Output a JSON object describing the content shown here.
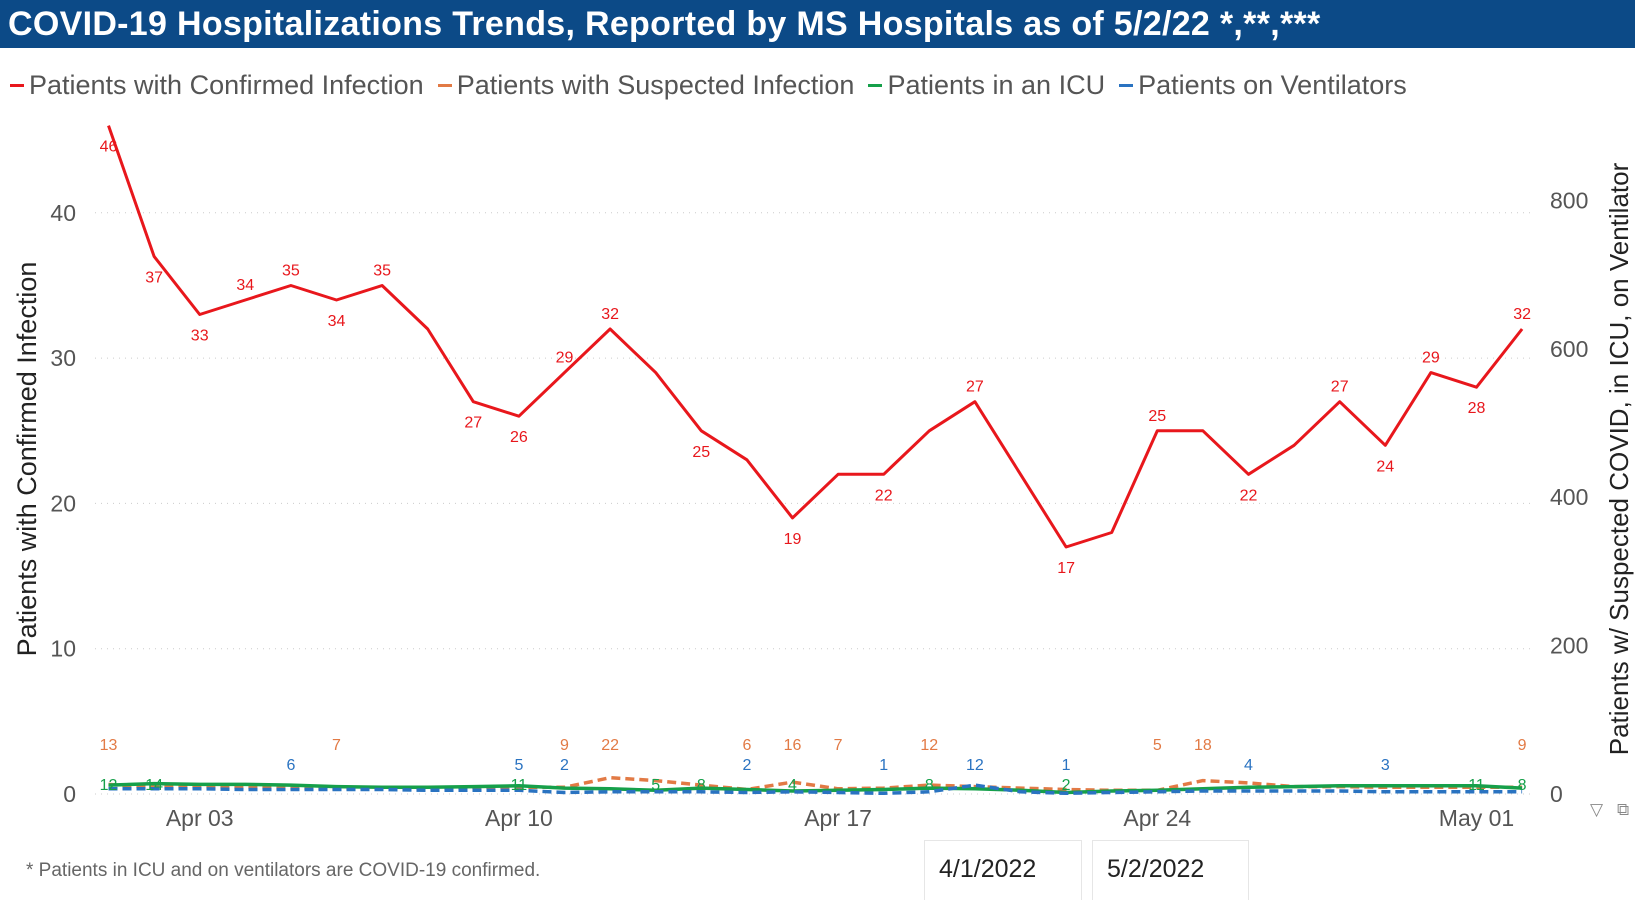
{
  "header": {
    "title": "COVID-19 Hospitalizations Trends, Reported by MS Hospitals as of 5/2/22 *,**,***"
  },
  "legend": [
    {
      "label": "Patients with Confirmed Infection",
      "color": "#e8171c"
    },
    {
      "label": "Patients with Suspected Infection",
      "color": "#e27a45"
    },
    {
      "label": "Patients in an ICU",
      "color": "#16a04a"
    },
    {
      "label": "Patients on Ventilators",
      "color": "#2a73c1"
    }
  ],
  "footnote": "* Patients in ICU and on ventilators are COVID-19 confirmed.",
  "slicer": {
    "start": "4/1/2022",
    "end": "5/2/2022"
  },
  "icons": {
    "filter": "filter-icon",
    "focus": "focus-mode-icon"
  },
  "chart_data": {
    "type": "line",
    "x_start": "2022-04-01",
    "x": [
      "Apr 01",
      "Apr 02",
      "Apr 03",
      "Apr 04",
      "Apr 05",
      "Apr 06",
      "Apr 07",
      "Apr 08",
      "Apr 09",
      "Apr 10",
      "Apr 11",
      "Apr 12",
      "Apr 13",
      "Apr 14",
      "Apr 15",
      "Apr 16",
      "Apr 17",
      "Apr 18",
      "Apr 19",
      "Apr 20",
      "Apr 21",
      "Apr 22",
      "Apr 23",
      "Apr 24",
      "Apr 25",
      "Apr 26",
      "Apr 27",
      "Apr 28",
      "Apr 29",
      "Apr 30",
      "May 01",
      "May 02"
    ],
    "x_ticks": [
      "Apr 03",
      "Apr 10",
      "Apr 17",
      "Apr 24",
      "May 01"
    ],
    "y_left": {
      "label": "Patients with Confirmed Infection",
      "ticks": [
        0,
        10,
        20,
        30,
        40
      ],
      "range": [
        0,
        46
      ]
    },
    "y_right": {
      "label": "Patients w/ Suspected COVID, in ICU, on Ventilator",
      "ticks": [
        0,
        200,
        400,
        600,
        800
      ],
      "range": [
        0,
        900
      ]
    },
    "grid": true,
    "legend_position": "top-left",
    "series": [
      {
        "name": "Patients with Confirmed Infection",
        "axis": "left",
        "color": "#e8171c",
        "dash": false,
        "values": [
          46,
          37,
          33,
          34,
          35,
          34,
          35,
          32,
          27,
          26,
          29,
          32,
          29,
          25,
          23,
          19,
          22,
          22,
          25,
          27,
          22,
          17,
          18,
          25,
          25,
          22,
          24,
          27,
          24,
          29,
          28,
          32
        ],
        "labeled": [
          0,
          1,
          2,
          3,
          4,
          5,
          6,
          8,
          9,
          10,
          11,
          13,
          15,
          17,
          19,
          21,
          23,
          25,
          27,
          28,
          29,
          30,
          31
        ]
      },
      {
        "name": "Patients with Suspected Infection",
        "axis": "right",
        "color": "#e27a45",
        "dash": true,
        "values": [
          13,
          9,
          10,
          9,
          8,
          7,
          9,
          8,
          9,
          9,
          9,
          22,
          18,
          12,
          6,
          16,
          7,
          8,
          12,
          10,
          8,
          6,
          5,
          5,
          18,
          15,
          10,
          10,
          9,
          9,
          9,
          9
        ],
        "labeled": [
          0,
          5,
          10,
          11,
          14,
          15,
          16,
          18,
          23,
          24,
          31
        ]
      },
      {
        "name": "Patients in an ICU",
        "axis": "right",
        "color": "#16a04a",
        "dash": false,
        "values": [
          12,
          14,
          13,
          13,
          12,
          10,
          9,
          9,
          10,
          11,
          8,
          7,
          5,
          8,
          6,
          4,
          5,
          6,
          8,
          7,
          5,
          2,
          4,
          5,
          7,
          9,
          10,
          11,
          11,
          11,
          11,
          8
        ],
        "labeled": [
          0,
          1,
          9,
          12,
          13,
          15,
          18,
          21,
          30,
          31
        ]
      },
      {
        "name": "Patients on Ventilators",
        "axis": "right",
        "color": "#2a73c1",
        "dash": true,
        "values": [
          7,
          7,
          7,
          6,
          6,
          6,
          6,
          5,
          5,
          5,
          2,
          3,
          3,
          3,
          2,
          3,
          2,
          1,
          3,
          12,
          3,
          1,
          2,
          3,
          4,
          4,
          4,
          4,
          3,
          3,
          3,
          3
        ],
        "labeled": [
          4,
          9,
          10,
          14,
          17,
          19,
          21,
          25,
          28
        ]
      }
    ]
  }
}
